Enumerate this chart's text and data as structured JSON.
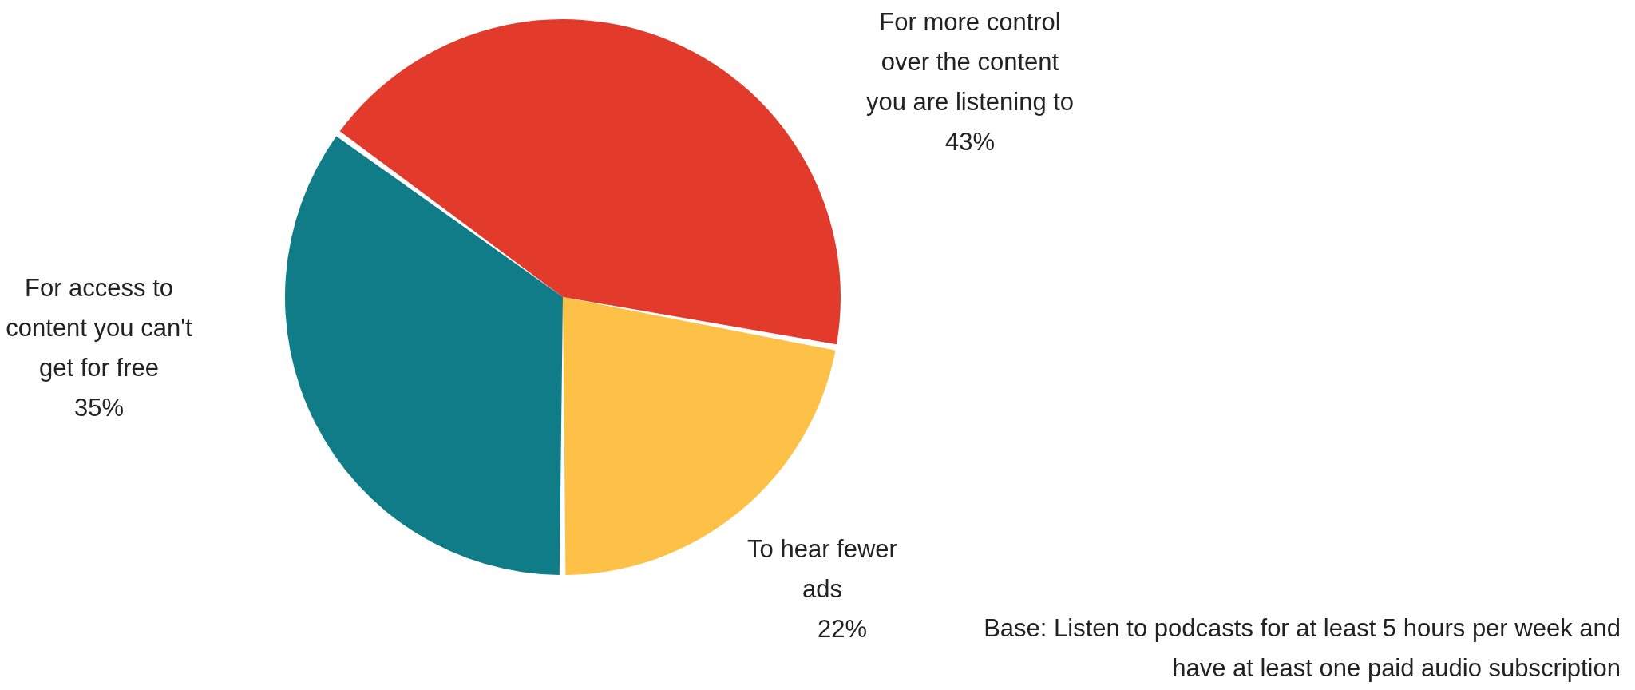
{
  "chart_data": {
    "type": "pie",
    "categories": [
      "For more control over the content you are listening to",
      "To hear fewer ads",
      "For access to content you can't get for free"
    ],
    "values": [
      43,
      22,
      35
    ],
    "colors": [
      "#e23b2b",
      "#fdc148",
      "#0f7c87"
    ],
    "value_labels": [
      "43%",
      "22%",
      "35%"
    ],
    "annotations": [
      "Base: Listen to podcasts for at least 5 hours per week and have at least one paid audio subscription"
    ]
  }
}
